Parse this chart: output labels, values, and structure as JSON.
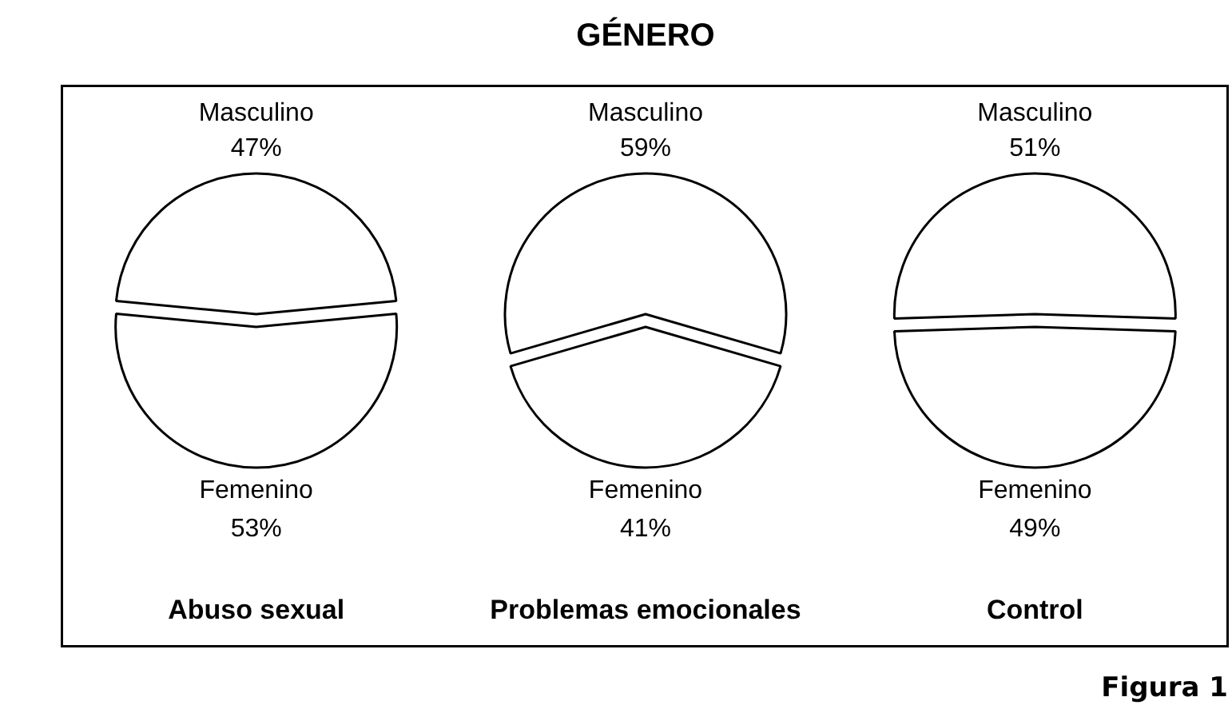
{
  "chart_data": [
    {
      "type": "pie",
      "xlabel": "Abuso sexual",
      "categories": [
        "Masculino",
        "Femenino"
      ],
      "values": [
        47,
        53
      ],
      "value_labels": [
        "47%",
        "53%"
      ],
      "colors": [
        "#ffffff",
        "#ffffff"
      ]
    },
    {
      "type": "pie",
      "title": "GÉNERO",
      "xlabel": "Problemas emocionales",
      "categories": [
        "Masculino",
        "Femenino"
      ],
      "values": [
        59,
        41
      ],
      "value_labels": [
        "59%",
        "41%"
      ],
      "colors": [
        "#ffffff",
        "#ffffff"
      ]
    },
    {
      "type": "pie",
      "xlabel": "Control",
      "categories": [
        "Masculino",
        "Femenino"
      ],
      "values": [
        51,
        49
      ],
      "value_labels": [
        "51%",
        "49%"
      ],
      "colors": [
        "#ffffff",
        "#ffffff"
      ],
      "annotations": [
        "Figura 1"
      ]
    }
  ]
}
